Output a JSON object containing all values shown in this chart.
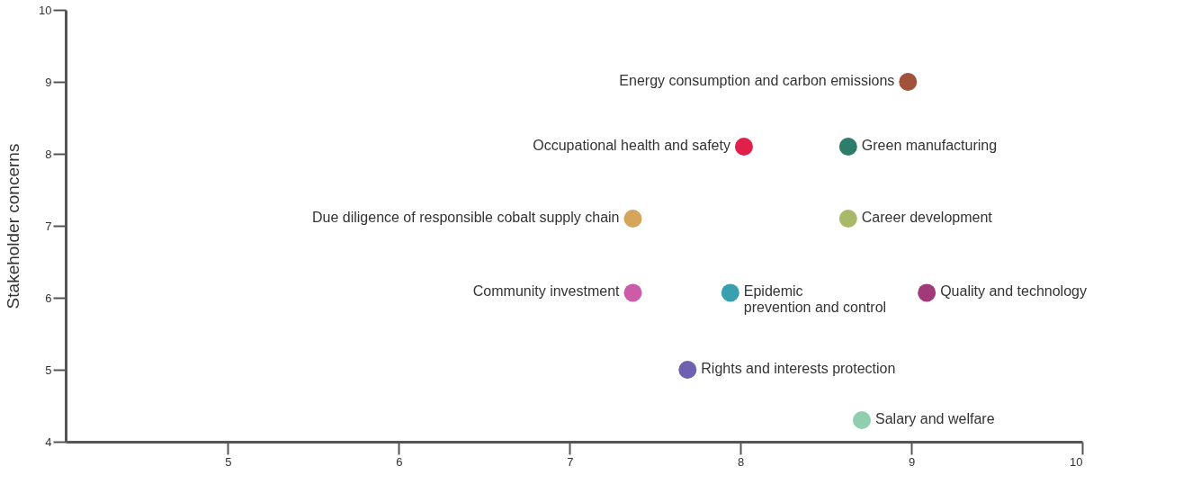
{
  "chart_data": {
    "type": "scatter",
    "ylabel": "Stakeholder concerns",
    "xlim": [
      4.05,
      10
    ],
    "ylim": [
      4,
      10
    ],
    "xticks": [
      {
        "value": 5,
        "label": "5"
      },
      {
        "value": 6,
        "label": "6"
      },
      {
        "value": 7,
        "label": "7"
      },
      {
        "value": 8,
        "label": "8"
      },
      {
        "value": 9,
        "label": "9"
      },
      {
        "value": 10,
        "label": "10"
      }
    ],
    "yticks": [
      {
        "value": 4,
        "label": "4"
      },
      {
        "value": 5,
        "label": "5"
      },
      {
        "value": 6,
        "label": "6"
      },
      {
        "value": 7,
        "label": "7"
      },
      {
        "value": 8,
        "label": "8"
      },
      {
        "value": 9,
        "label": "9"
      },
      {
        "value": 10,
        "label": "10"
      }
    ],
    "grid": false,
    "legend": false,
    "marker": "circle",
    "series": [
      {
        "name": "Energy consumption and carbon emissions",
        "color": "#a0523a",
        "x": [
          8.98
        ],
        "values": [
          9.0
        ]
      },
      {
        "name": "Occupational health and safety",
        "color": "#e0204a",
        "x": [
          8.02
        ],
        "values": [
          8.1
        ]
      },
      {
        "name": "Green manufacturing",
        "color": "#2e7d6a",
        "x": [
          8.63
        ],
        "values": [
          8.1
        ]
      },
      {
        "name": "Due diligence of responsible cobalt supply chain",
        "color": "#d4a55a",
        "x": [
          7.37
        ],
        "values": [
          7.1
        ]
      },
      {
        "name": "Career development",
        "color": "#a8b96a",
        "x": [
          8.63
        ],
        "values": [
          7.1
        ]
      },
      {
        "name": "Community investment",
        "color": "#cc5ca8",
        "x": [
          7.37
        ],
        "values": [
          6.07
        ]
      },
      {
        "name": "Epidemic prevention and control",
        "color": "#3aa0b0",
        "x": [
          7.94
        ],
        "values": [
          6.07
        ]
      },
      {
        "name": "Quality and technology",
        "color": "#a03a78",
        "x": [
          9.09
        ],
        "values": [
          6.07
        ]
      },
      {
        "name": "Rights and interests protection",
        "color": "#7060b0",
        "x": [
          7.69
        ],
        "values": [
          5.0
        ]
      },
      {
        "name": "Salary and welfare",
        "color": "#8fcfb0",
        "x": [
          8.71
        ],
        "values": [
          4.3
        ]
      }
    ]
  }
}
